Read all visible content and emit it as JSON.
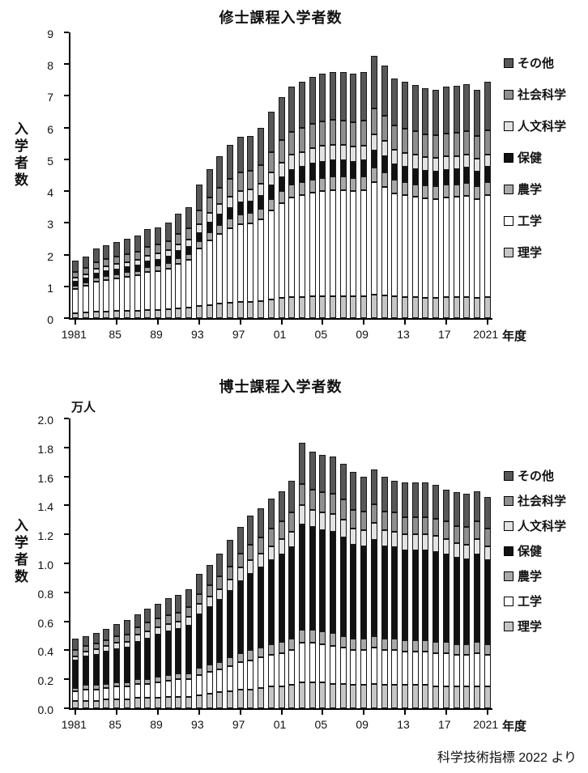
{
  "page": {
    "background_color": "#ffffff",
    "attribution": "科学技術指標 2022 より"
  },
  "chart_data": [
    {
      "type": "bar",
      "stacked": true,
      "title": "修士課程入学者数",
      "ylabel": "入学者数",
      "y_unit": "",
      "xlabel": "年度",
      "ylim": [
        0,
        9
      ],
      "yticks": [
        "0",
        "1",
        "2",
        "3",
        "4",
        "5",
        "6",
        "7",
        "8",
        "9"
      ],
      "years": [
        1981,
        1982,
        1983,
        1984,
        1985,
        1986,
        1987,
        1988,
        1989,
        1990,
        1991,
        1992,
        1993,
        1994,
        1995,
        1996,
        1997,
        1998,
        1999,
        2000,
        2001,
        2002,
        2003,
        2004,
        2005,
        2006,
        2007,
        2008,
        2009,
        2010,
        2011,
        2012,
        2013,
        2014,
        2015,
        2016,
        2017,
        2018,
        2019,
        2020,
        2021
      ],
      "xticks": [
        {
          "index": 0,
          "label": "1981"
        },
        {
          "index": 4,
          "label": "85"
        },
        {
          "index": 8,
          "label": "89"
        },
        {
          "index": 12,
          "label": "93"
        },
        {
          "index": 16,
          "label": "97"
        },
        {
          "index": 20,
          "label": "01"
        },
        {
          "index": 24,
          "label": "05"
        },
        {
          "index": 28,
          "label": "09"
        },
        {
          "index": 32,
          "label": "13"
        },
        {
          "index": 36,
          "label": "17"
        },
        {
          "index": 40,
          "label": "2021"
        }
      ],
      "legend_top_to_bottom": [
        "その他",
        "社会科学",
        "人文科学",
        "保健",
        "農学",
        "工学",
        "理学"
      ],
      "series": [
        {
          "name": "理学",
          "color": "#c6c6c6",
          "values": [
            0.16,
            0.18,
            0.2,
            0.21,
            0.22,
            0.23,
            0.23,
            0.25,
            0.26,
            0.27,
            0.3,
            0.32,
            0.38,
            0.42,
            0.46,
            0.49,
            0.51,
            0.52,
            0.54,
            0.59,
            0.63,
            0.66,
            0.67,
            0.68,
            0.69,
            0.7,
            0.7,
            0.69,
            0.7,
            0.74,
            0.72,
            0.68,
            0.67,
            0.66,
            0.65,
            0.65,
            0.66,
            0.66,
            0.67,
            0.65,
            0.67
          ]
        },
        {
          "name": "工学",
          "color": "#ffffff",
          "values": [
            0.77,
            0.84,
            0.95,
            0.99,
            1.03,
            1.08,
            1.12,
            1.2,
            1.23,
            1.29,
            1.42,
            1.51,
            1.81,
            2.02,
            2.19,
            2.34,
            2.45,
            2.47,
            2.58,
            2.8,
            2.99,
            3.14,
            3.2,
            3.27,
            3.31,
            3.33,
            3.33,
            3.31,
            3.33,
            3.55,
            3.42,
            3.25,
            3.2,
            3.16,
            3.12,
            3.1,
            3.14,
            3.16,
            3.18,
            3.1,
            3.2
          ]
        },
        {
          "name": "農学",
          "color": "#a9a9a9",
          "values": [
            0.1,
            0.11,
            0.12,
            0.13,
            0.13,
            0.14,
            0.14,
            0.15,
            0.16,
            0.17,
            0.18,
            0.19,
            0.23,
            0.26,
            0.28,
            0.3,
            0.31,
            0.32,
            0.33,
            0.36,
            0.38,
            0.4,
            0.41,
            0.42,
            0.42,
            0.43,
            0.43,
            0.42,
            0.43,
            0.45,
            0.44,
            0.42,
            0.41,
            0.4,
            0.4,
            0.4,
            0.4,
            0.4,
            0.41,
            0.4,
            0.41
          ]
        },
        {
          "name": "保健",
          "color": "#121212",
          "values": [
            0.12,
            0.13,
            0.14,
            0.15,
            0.16,
            0.16,
            0.17,
            0.18,
            0.19,
            0.2,
            0.21,
            0.23,
            0.27,
            0.31,
            0.33,
            0.35,
            0.37,
            0.37,
            0.39,
            0.42,
            0.45,
            0.47,
            0.48,
            0.49,
            0.5,
            0.5,
            0.5,
            0.5,
            0.5,
            0.54,
            0.52,
            0.49,
            0.48,
            0.48,
            0.47,
            0.47,
            0.47,
            0.48,
            0.48,
            0.47,
            0.48
          ]
        },
        {
          "name": "人文科学",
          "color": "#e2e2e2",
          "values": [
            0.12,
            0.13,
            0.14,
            0.15,
            0.16,
            0.16,
            0.17,
            0.18,
            0.19,
            0.2,
            0.21,
            0.23,
            0.27,
            0.31,
            0.33,
            0.35,
            0.37,
            0.37,
            0.39,
            0.42,
            0.45,
            0.47,
            0.48,
            0.49,
            0.5,
            0.5,
            0.49,
            0.48,
            0.48,
            0.5,
            0.48,
            0.46,
            0.45,
            0.44,
            0.43,
            0.42,
            0.42,
            0.41,
            0.41,
            0.4,
            0.4
          ]
        },
        {
          "name": "社会科学",
          "color": "#8f8f8f",
          "values": [
            0.18,
            0.2,
            0.22,
            0.23,
            0.24,
            0.25,
            0.26,
            0.28,
            0.29,
            0.3,
            0.33,
            0.35,
            0.42,
            0.47,
            0.51,
            0.55,
            0.57,
            0.58,
            0.6,
            0.65,
            0.7,
            0.73,
            0.75,
            0.76,
            0.77,
            0.78,
            0.78,
            0.77,
            0.78,
            0.83,
            0.8,
            0.76,
            0.75,
            0.74,
            0.73,
            0.72,
            0.73,
            0.74,
            0.74,
            0.72,
            0.75
          ]
        },
        {
          "name": "その他",
          "color": "#575757",
          "values": [
            0.35,
            0.36,
            0.43,
            0.44,
            0.46,
            0.48,
            0.51,
            0.56,
            0.53,
            0.57,
            0.65,
            0.67,
            0.82,
            0.91,
            1.0,
            1.07,
            1.12,
            1.12,
            1.17,
            1.26,
            1.35,
            1.43,
            1.46,
            1.49,
            1.51,
            1.51,
            1.52,
            1.53,
            1.53,
            1.64,
            1.57,
            1.49,
            1.49,
            1.47,
            1.45,
            1.44,
            1.47,
            1.48,
            1.48,
            1.44,
            1.53
          ]
        }
      ]
    },
    {
      "type": "bar",
      "stacked": true,
      "title": "博士課程入学者数",
      "ylabel": "入学者数",
      "y_unit": "万人",
      "xlabel": "年度",
      "ylim": [
        0,
        2.0
      ],
      "yticks": [
        "0.0",
        "0.2",
        "0.4",
        "0.6",
        "0.8",
        "1.0",
        "1.2",
        "1.4",
        "1.6",
        "1.8",
        "2.0"
      ],
      "years": [
        1981,
        1982,
        1983,
        1984,
        1985,
        1986,
        1987,
        1988,
        1989,
        1990,
        1991,
        1992,
        1993,
        1994,
        1995,
        1996,
        1997,
        1998,
        1999,
        2000,
        2001,
        2002,
        2003,
        2004,
        2005,
        2006,
        2007,
        2008,
        2009,
        2010,
        2011,
        2012,
        2013,
        2014,
        2015,
        2016,
        2017,
        2018,
        2019,
        2020,
        2021
      ],
      "xticks": [
        {
          "index": 0,
          "label": "1981"
        },
        {
          "index": 4,
          "label": "85"
        },
        {
          "index": 8,
          "label": "89"
        },
        {
          "index": 12,
          "label": "93"
        },
        {
          "index": 16,
          "label": "97"
        },
        {
          "index": 20,
          "label": "01"
        },
        {
          "index": 24,
          "label": "05"
        },
        {
          "index": 28,
          "label": "09"
        },
        {
          "index": 32,
          "label": "13"
        },
        {
          "index": 36,
          "label": "17"
        },
        {
          "index": 40,
          "label": "2021"
        }
      ],
      "legend_top_to_bottom": [
        "その他",
        "社会科学",
        "人文科学",
        "保健",
        "農学",
        "工学",
        "理学"
      ],
      "series": [
        {
          "name": "理学",
          "color": "#c6c6c6",
          "values": [
            0.05,
            0.05,
            0.05,
            0.06,
            0.06,
            0.06,
            0.07,
            0.07,
            0.07,
            0.08,
            0.08,
            0.08,
            0.09,
            0.1,
            0.11,
            0.12,
            0.13,
            0.13,
            0.14,
            0.15,
            0.15,
            0.16,
            0.18,
            0.18,
            0.18,
            0.17,
            0.17,
            0.16,
            0.16,
            0.17,
            0.16,
            0.16,
            0.16,
            0.16,
            0.16,
            0.15,
            0.15,
            0.15,
            0.15,
            0.15,
            0.15
          ]
        },
        {
          "name": "工学",
          "color": "#ffffff",
          "values": [
            0.07,
            0.08,
            0.08,
            0.08,
            0.09,
            0.09,
            0.1,
            0.1,
            0.11,
            0.11,
            0.12,
            0.12,
            0.14,
            0.15,
            0.16,
            0.17,
            0.19,
            0.2,
            0.21,
            0.22,
            0.23,
            0.24,
            0.27,
            0.27,
            0.26,
            0.26,
            0.25,
            0.24,
            0.24,
            0.25,
            0.24,
            0.24,
            0.23,
            0.23,
            0.23,
            0.23,
            0.23,
            0.22,
            0.22,
            0.23,
            0.22
          ]
        },
        {
          "name": "農学",
          "color": "#a9a9a9",
          "values": [
            0.02,
            0.03,
            0.03,
            0.03,
            0.03,
            0.03,
            0.03,
            0.03,
            0.04,
            0.04,
            0.04,
            0.04,
            0.05,
            0.05,
            0.05,
            0.06,
            0.06,
            0.07,
            0.07,
            0.07,
            0.08,
            0.08,
            0.09,
            0.09,
            0.09,
            0.09,
            0.08,
            0.08,
            0.08,
            0.08,
            0.08,
            0.08,
            0.08,
            0.08,
            0.08,
            0.08,
            0.08,
            0.07,
            0.07,
            0.08,
            0.07
          ]
        },
        {
          "name": "保健",
          "color": "#121212",
          "values": [
            0.19,
            0.2,
            0.21,
            0.22,
            0.23,
            0.24,
            0.26,
            0.28,
            0.29,
            0.3,
            0.31,
            0.33,
            0.37,
            0.4,
            0.43,
            0.46,
            0.5,
            0.53,
            0.55,
            0.58,
            0.6,
            0.63,
            0.73,
            0.71,
            0.7,
            0.7,
            0.68,
            0.65,
            0.64,
            0.66,
            0.64,
            0.63,
            0.62,
            0.62,
            0.62,
            0.62,
            0.6,
            0.6,
            0.59,
            0.6,
            0.58
          ]
        },
        {
          "name": "人文科学",
          "color": "#e2e2e2",
          "values": [
            0.03,
            0.03,
            0.04,
            0.04,
            0.04,
            0.04,
            0.05,
            0.05,
            0.05,
            0.05,
            0.05,
            0.06,
            0.07,
            0.07,
            0.07,
            0.08,
            0.09,
            0.09,
            0.1,
            0.1,
            0.11,
            0.11,
            0.13,
            0.12,
            0.12,
            0.12,
            0.12,
            0.11,
            0.11,
            0.12,
            0.11,
            0.11,
            0.11,
            0.11,
            0.11,
            0.11,
            0.11,
            0.1,
            0.1,
            0.11,
            0.1
          ]
        },
        {
          "name": "社会科学",
          "color": "#8f8f8f",
          "values": [
            0.04,
            0.04,
            0.04,
            0.04,
            0.05,
            0.05,
            0.05,
            0.06,
            0.06,
            0.06,
            0.06,
            0.07,
            0.07,
            0.08,
            0.09,
            0.09,
            0.1,
            0.11,
            0.11,
            0.12,
            0.12,
            0.13,
            0.15,
            0.14,
            0.14,
            0.14,
            0.14,
            0.13,
            0.13,
            0.13,
            0.13,
            0.13,
            0.12,
            0.12,
            0.12,
            0.12,
            0.12,
            0.12,
            0.12,
            0.12,
            0.12
          ]
        },
        {
          "name": "その他",
          "color": "#575757",
          "values": [
            0.08,
            0.07,
            0.07,
            0.08,
            0.08,
            0.1,
            0.09,
            0.1,
            0.1,
            0.12,
            0.12,
            0.12,
            0.14,
            0.14,
            0.16,
            0.18,
            0.18,
            0.2,
            0.2,
            0.21,
            0.21,
            0.22,
            0.28,
            0.26,
            0.26,
            0.26,
            0.25,
            0.26,
            0.24,
            0.24,
            0.24,
            0.22,
            0.24,
            0.24,
            0.24,
            0.23,
            0.22,
            0.23,
            0.23,
            0.21,
            0.22
          ]
        }
      ]
    }
  ]
}
